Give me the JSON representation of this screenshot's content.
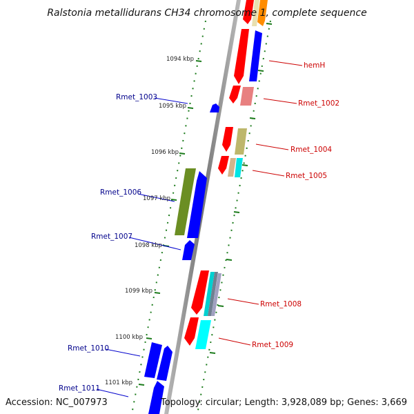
{
  "title": "Ralstonia metallidurans CH34 chromosome 1, complete sequence",
  "accession": "Accession: NC_007973",
  "topology": "Topology: circular; Length: 3,928,089 bp; Genes: 3,669",
  "kbp_ticks": [
    "1094 kbp",
    "1095 kbp",
    "1096 kbp",
    "1097 kbp",
    "1098 kbp",
    "1099 kbp",
    "1100 kbp",
    "1101 kbp"
  ],
  "labels_left": [
    "Rmet_1003",
    "Rmet_1006",
    "Rmet_1007",
    "Rmet_1010",
    "Rmet_1011"
  ],
  "labels_right": [
    "hemH",
    "Rmet_1002",
    "Rmet_1004",
    "Rmet_1005",
    "Rmet_1008",
    "Rmet_1009"
  ],
  "colors": {
    "label_left": "#00008b",
    "label_right": "#cc0000",
    "backbone": "#888888",
    "tick": "#1a7a1a",
    "gene_red": "#ff0000",
    "gene_blue": "#0000ff",
    "gene_orange": "#ff8c00",
    "gene_olive": "#6b8e23",
    "gene_pink": "#e88080",
    "gene_khaki": "#bdb76b",
    "gene_cyan": "#00ffff",
    "gene_tan": "#d2b48c",
    "gene_teal": "#20b2aa",
    "gene_slate": "#708090"
  }
}
